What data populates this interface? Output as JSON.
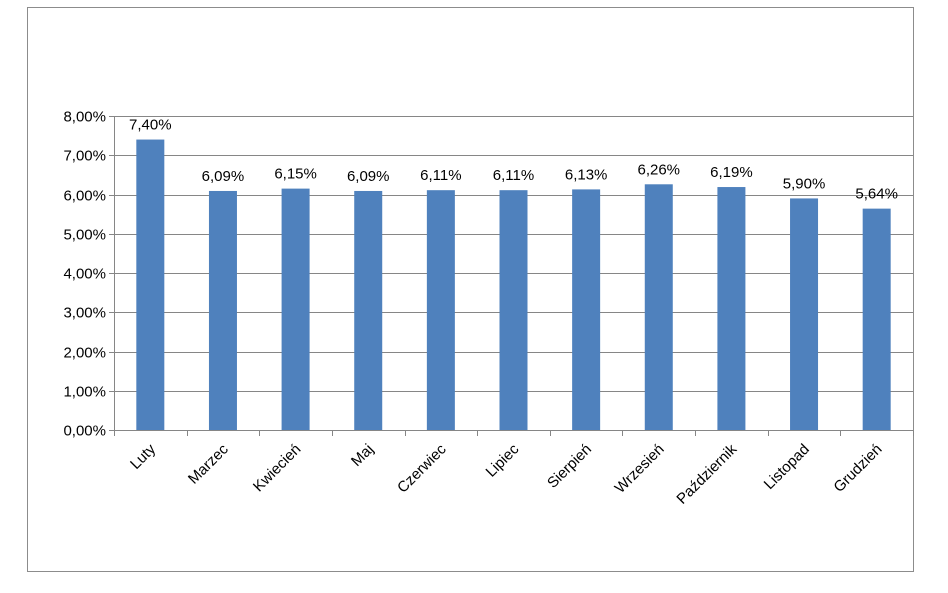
{
  "chart_data": {
    "type": "bar",
    "categories": [
      "Luty",
      "Marzec",
      "Kwiecień",
      "Maj",
      "Czerwiec",
      "Lipiec",
      "Sierpień",
      "Wrzesień",
      "Październik",
      "Listopad",
      "Grudzień"
    ],
    "values": [
      7.4,
      6.09,
      6.15,
      6.09,
      6.11,
      6.11,
      6.13,
      6.26,
      6.19,
      5.9,
      5.64
    ],
    "data_labels": [
      "7,40%",
      "6,09%",
      "6,15%",
      "6,09%",
      "6,11%",
      "6,11%",
      "6,13%",
      "6,26%",
      "6,19%",
      "5,90%",
      "5,64%"
    ],
    "y_ticks": [
      0,
      1,
      2,
      3,
      4,
      5,
      6,
      7,
      8
    ],
    "y_tick_labels": [
      "0,00%",
      "1,00%",
      "2,00%",
      "3,00%",
      "4,00%",
      "5,00%",
      "6,00%",
      "7,00%",
      "8,00%"
    ],
    "ylim": [
      0,
      8
    ],
    "grid": true,
    "legend": "none",
    "bar_color": "#4f81bd",
    "grid_color": "#868686",
    "axis_color": "#868686"
  }
}
